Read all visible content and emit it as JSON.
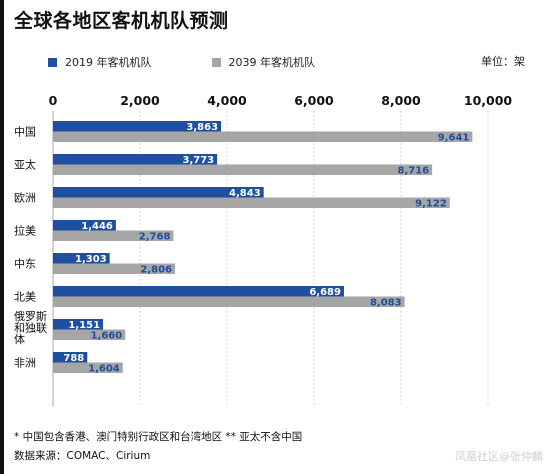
{
  "chart_data": {
    "type": "bar",
    "title": "全球各地区客机机队预测",
    "unit_label": "单位：架",
    "categories": [
      "中国",
      "亚太",
      "欧洲",
      "拉美",
      "中东",
      "北美",
      "俄罗斯\n和独联\n体",
      "非洲"
    ],
    "series": [
      {
        "name": "2019 年客机机队",
        "color": "#1e4fa0",
        "label_color": "#ffffff",
        "values": [
          3863,
          3773,
          4843,
          1446,
          1303,
          6689,
          1151,
          788
        ]
      },
      {
        "name": "2039 年客机机队",
        "color": "#a6a6a6",
        "label_color": "#1e4fa0",
        "values": [
          9641,
          8716,
          9122,
          2768,
          2806,
          8083,
          1660,
          1604
        ]
      }
    ],
    "value_labels": [
      [
        "3,863",
        "3,773",
        "4,843",
        "1,446",
        "1,303",
        "6,689",
        "1,151",
        "788"
      ],
      [
        "9,641",
        "8,716",
        "9,122",
        "2,768",
        "2,806",
        "8,083",
        "1,660",
        "1,604"
      ]
    ],
    "x_ticks": [
      0,
      2000,
      4000,
      6000,
      8000,
      10000
    ],
    "x_tick_labels": [
      "0",
      "2,000",
      "4,000",
      "6,000",
      "8,000",
      "10,000"
    ],
    "xlim": [
      0,
      10000
    ],
    "orientation": "horizontal",
    "grid": true,
    "legend_position": "top-left"
  },
  "footnote": "* 中国包含香港、澳门特别行政区和台湾地区 ** 亚太不含中国",
  "source": "数据来源：COMAC、Cirium",
  "watermark": "凤凰社区@张仲麟"
}
